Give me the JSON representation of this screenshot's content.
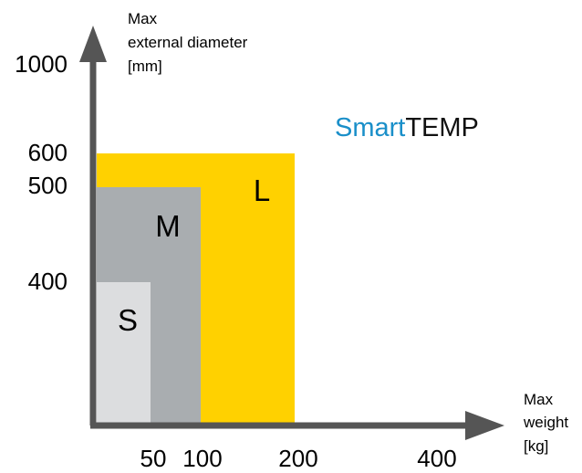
{
  "chart_data": {
    "type": "area",
    "title": "",
    "brand": {
      "part1": "Smart",
      "part2": "TEMP",
      "part1_color": "#1a8fc9",
      "part2_color": "#111111"
    },
    "ylabel": [
      "Max",
      "external diameter",
      "[mm]"
    ],
    "xlabel": [
      "Max",
      "weight",
      "[kg]"
    ],
    "x_ticks": [
      "50",
      "100",
      "200",
      "400"
    ],
    "y_ticks": [
      "1000",
      "600",
      "500",
      "400"
    ],
    "series": [
      {
        "name": "L",
        "max_weight_kg": 200,
        "max_external_diameter_mm": 600,
        "color": "#ffd100"
      },
      {
        "name": "M",
        "max_weight_kg": 100,
        "max_external_diameter_mm": 500,
        "color": "#a9adb0"
      },
      {
        "name": "S",
        "max_weight_kg": 50,
        "max_external_diameter_mm": 400,
        "color": "#dcdddf"
      }
    ],
    "axis_color": "#555555",
    "grid": false
  }
}
